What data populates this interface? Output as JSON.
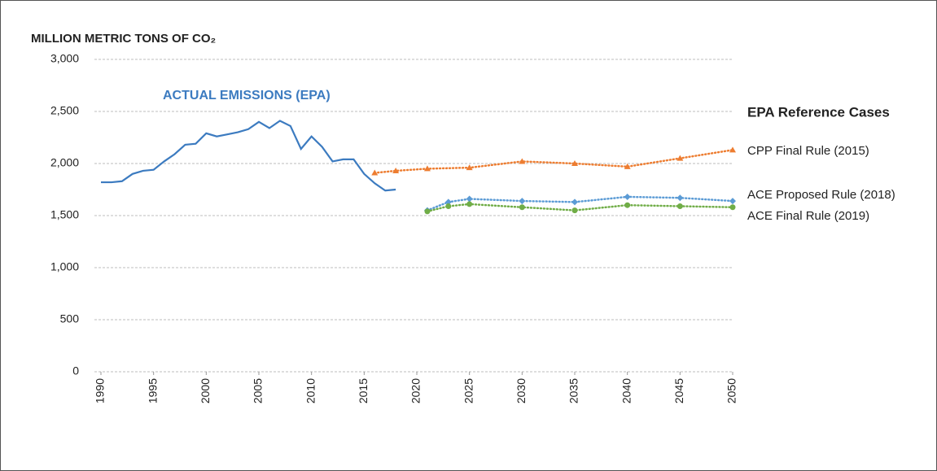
{
  "chart_data": {
    "type": "line",
    "title": "MILLION METRIC TONS OF CO₂",
    "legend_title": "EPA Reference Cases",
    "xlim": [
      1990,
      2050
    ],
    "xticks": [
      1990,
      1995,
      2000,
      2005,
      2010,
      2015,
      2020,
      2025,
      2030,
      2035,
      2040,
      2045,
      2050
    ],
    "ylim": [
      0,
      3000
    ],
    "yticks": [
      0,
      500,
      {
        "value": 1000,
        "label": "1,000"
      },
      {
        "value": 1500,
        "label": "1,500"
      },
      {
        "value": 2000,
        "label": "2,000"
      },
      {
        "value": 2500,
        "label": "2,500"
      },
      {
        "value": 3000,
        "label": "3,000"
      }
    ],
    "grid": true,
    "series": [
      {
        "name": "ACTUAL EMISSIONS (EPA)",
        "color": "#3c7bc0",
        "line_style": "solid",
        "marker": "none",
        "x": [
          1990,
          1991,
          1992,
          1993,
          1994,
          1995,
          1996,
          1997,
          1998,
          1999,
          2000,
          2001,
          2002,
          2003,
          2004,
          2005,
          2006,
          2007,
          2008,
          2009,
          2010,
          2011,
          2012,
          2013,
          2014,
          2015,
          2016,
          2017,
          2018
        ],
        "values": [
          1820,
          1820,
          1830,
          1900,
          1930,
          1940,
          2020,
          2090,
          2180,
          2190,
          2290,
          2260,
          2280,
          2300,
          2330,
          2400,
          2340,
          2410,
          2360,
          2140,
          2260,
          2160,
          2020,
          2040,
          2040,
          1900,
          1810,
          1740,
          1750
        ]
      },
      {
        "name": "CPP Final Rule (2015)",
        "color": "#ed7d31",
        "line_style": "dotted",
        "marker": "triangle",
        "x": [
          2016,
          2018,
          2021,
          2025,
          2030,
          2035,
          2040,
          2045,
          2050
        ],
        "values": [
          1910,
          1930,
          1950,
          1960,
          2020,
          2000,
          1970,
          2050,
          2130
        ]
      },
      {
        "name": "ACE Proposed Rule (2018)",
        "color": "#5b9bd5",
        "line_style": "dotted",
        "marker": "diamond",
        "x": [
          2021,
          2023,
          2025,
          2030,
          2035,
          2040,
          2045,
          2050
        ],
        "values": [
          1550,
          1630,
          1660,
          1640,
          1630,
          1680,
          1670,
          1640
        ]
      },
      {
        "name": "ACE Final Rule (2019)",
        "color": "#70ad47",
        "line_style": "dotted",
        "marker": "circle",
        "x": [
          2021,
          2023,
          2025,
          2030,
          2035,
          2040,
          2045,
          2050
        ],
        "values": [
          1540,
          1590,
          1610,
          1580,
          1550,
          1600,
          1590,
          1580
        ]
      }
    ]
  }
}
